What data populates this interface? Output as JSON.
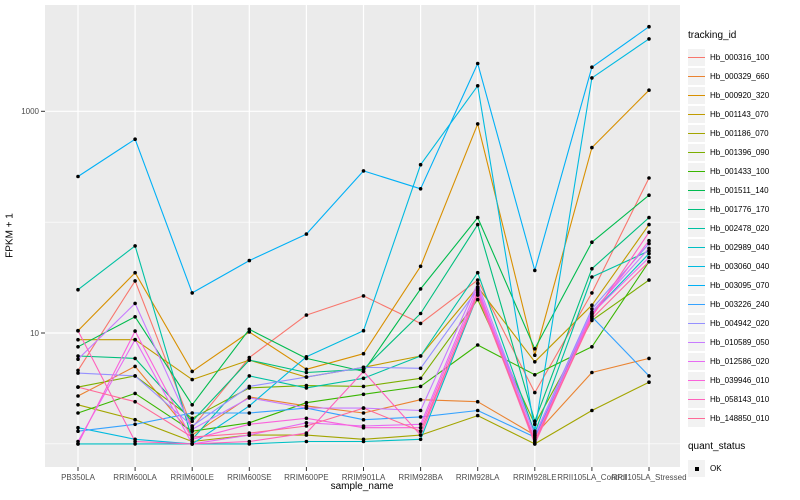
{
  "chart_data": {
    "type": "line",
    "title": "",
    "xlabel": "sample_name",
    "ylabel": "FPKM + 1",
    "y_scale": "log10",
    "y_ticks": [
      10,
      1000
    ],
    "y_minor_gridlines": [
      1,
      100
    ],
    "ylim": [
      0.62,
      9000
    ],
    "grid": "on",
    "panel_bg": "#EBEBEB",
    "gridline_color": "#FFFFFF",
    "point_color": "#000000",
    "tick_text_color": "#4D4D4D",
    "legend": {
      "position": "right",
      "tracking_title": "tracking_id",
      "quant_title": "quant_status",
      "quant_ok_label": "OK"
    },
    "categories": [
      "PB350LA",
      "RRIM600LA",
      "RRIM600LE",
      "RRIM600SE",
      "RRIM600PE",
      "RRIM901LA",
      "RRIM928BA",
      "RRIM928LA",
      "RRIM928LE",
      "RRII105LA_Control",
      "RRII105LA_Stressed"
    ],
    "series": [
      {
        "name": "Hb_000316_100",
        "color": "#F8766D",
        "values": [
          4.6,
          29.5,
          1.4,
          6.0,
          14.5,
          21.6,
          12.2,
          30,
          2.9,
          23,
          250
        ]
      },
      {
        "name": "Hb_000329_660",
        "color": "#EA8331",
        "values": [
          2.7,
          5.0,
          1.2,
          2.65,
          2.2,
          1.9,
          2.5,
          2.4,
          1.2,
          4.4,
          5.9
        ]
      },
      {
        "name": "Hb_000920_320",
        "color": "#D89000",
        "values": [
          10.5,
          35,
          4.5,
          10.2,
          4.7,
          6.5,
          40,
          770,
          6.3,
          470,
          1550
        ]
      },
      {
        "name": "Hb_001143_070",
        "color": "#C09B00",
        "values": [
          8.7,
          8.7,
          3.8,
          5.7,
          4.0,
          4.9,
          6.2,
          26,
          5.5,
          17.8,
          95
        ]
      },
      {
        "name": "Hb_001186_070",
        "color": "#A3A500",
        "values": [
          2.25,
          1.65,
          1.05,
          1.2,
          1.2,
          1.1,
          1.2,
          1.8,
          1.0,
          2.0,
          3.6
        ]
      },
      {
        "name": "Hb_001396_090",
        "color": "#7CAE00",
        "values": [
          3.25,
          4.1,
          1.7,
          3.2,
          3.35,
          3.3,
          3.9,
          20,
          1.5,
          13,
          30
        ]
      },
      {
        "name": "Hb_001433_100",
        "color": "#39B600",
        "values": [
          1.9,
          2.85,
          1.3,
          1.55,
          2.35,
          2.8,
          3.3,
          7.8,
          4.2,
          7.5,
          44
        ]
      },
      {
        "name": "Hb_001511_140",
        "color": "#00BB4E",
        "values": [
          7.5,
          14.0,
          2.25,
          10.8,
          5.9,
          4.5,
          25,
          110,
          7.2,
          66,
          175
        ]
      },
      {
        "name": "Hb_001776_170",
        "color": "#00BF7D",
        "values": [
          6.2,
          5.9,
          1.6,
          5.7,
          4.4,
          4.7,
          15,
          95,
          1.6,
          38,
          110
        ]
      },
      {
        "name": "Hb_002478_020",
        "color": "#00C1A3",
        "values": [
          24.6,
          61,
          1.1,
          4.1,
          3.2,
          3.9,
          6.2,
          35,
          1.25,
          32,
          55
        ]
      },
      {
        "name": "Hb_002989_040",
        "color": "#00BFC4",
        "values": [
          1.0,
          1.0,
          1.0,
          1.0,
          1.05,
          1.05,
          1.1,
          22,
          1.1,
          15,
          52
        ]
      },
      {
        "name": "Hb_003060_040",
        "color": "#00BAE0",
        "values": [
          1.4,
          1.1,
          1.0,
          2.2,
          6.1,
          10.5,
          330,
          1700,
          1.3,
          2000,
          4500
        ]
      },
      {
        "name": "Hb_003095_070",
        "color": "#00B0F6",
        "values": [
          258,
          560,
          23,
          45,
          78,
          290,
          200,
          2700,
          36.7,
          2500,
          5800
        ]
      },
      {
        "name": "Hb_003226_240",
        "color": "#35A2FF",
        "values": [
          1.3,
          1.5,
          1.9,
          1.9,
          2.1,
          1.65,
          1.75,
          2.0,
          1.15,
          14,
          4.1
        ]
      },
      {
        "name": "Hb_004942_020",
        "color": "#9590FF",
        "values": [
          4.35,
          4.1,
          1.45,
          3.3,
          4.0,
          4.9,
          4.8,
          25,
          1.2,
          16.5,
          64
        ]
      },
      {
        "name": "Hb_010589_050",
        "color": "#C77CFF",
        "values": [
          5.8,
          18.5,
          1.35,
          2.6,
          2.1,
          2.1,
          2.0,
          28,
          1.2,
          15.5,
          58
        ]
      },
      {
        "name": "Hb_012586_020",
        "color": "#E76BF3",
        "values": [
          1.05,
          8.7,
          1.0,
          1.2,
          1.55,
          1.45,
          1.5,
          26,
          1.05,
          15,
          48
        ]
      },
      {
        "name": "Hb_039946_010",
        "color": "#FA62DB",
        "values": [
          1.0,
          10.4,
          1.1,
          1.5,
          1.7,
          1.4,
          1.4,
          24,
          1.1,
          14.5,
          68
        ]
      },
      {
        "name": "Hb_058143_010",
        "color": "#FF62BC",
        "values": [
          10.5,
          1.05,
          1.0,
          1.05,
          1.25,
          4.5,
          1.2,
          23,
          1.0,
          14,
          81
        ]
      },
      {
        "name": "Hb_148850_010",
        "color": "#FF6A98",
        "values": [
          3.25,
          2.4,
          1.15,
          1.25,
          1.45,
          2.1,
          1.3,
          22,
          1.05,
          13.5,
          44
        ]
      }
    ]
  }
}
